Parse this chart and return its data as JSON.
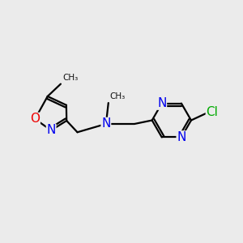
{
  "bg_color": "#ebebeb",
  "bond_color": "#000000",
  "bond_width": 1.6,
  "atom_colors": {
    "N": "#0000ee",
    "O": "#ee0000",
    "Cl": "#00aa00"
  },
  "font_size": 11,
  "font_size_sub": 9,
  "xlim": [
    0,
    10
  ],
  "ylim": [
    0,
    10
  ]
}
